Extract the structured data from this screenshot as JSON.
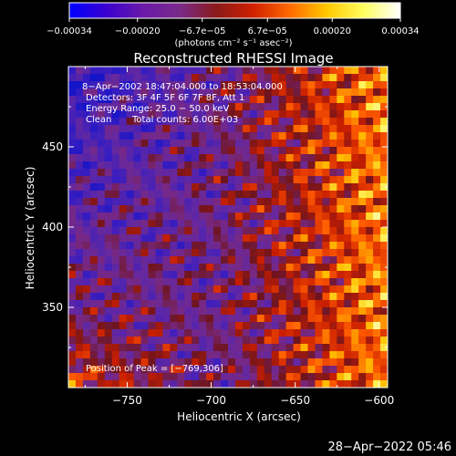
{
  "chart_data": {
    "type": "heatmap",
    "title": "Reconstructed RHESSI Image",
    "xlabel": "Heliocentric X (arcsec)",
    "ylabel": "Heliocentric Y (arcsec)",
    "xlim": [
      -785,
      -595
    ],
    "ylim": [
      300,
      500
    ],
    "x_ticks": [
      -750,
      -700,
      -650,
      -600
    ],
    "x_tick_labels": [
      "−750",
      "−700",
      "−650",
      "−600"
    ],
    "y_ticks": [
      350,
      400,
      450
    ],
    "y_tick_labels": [
      "350",
      "400",
      "450"
    ],
    "colorbar": {
      "range": [
        -0.00034,
        0.00034
      ],
      "ticks": [
        -0.00034,
        -0.0002,
        -6.7e-05,
        6.7e-05,
        0.0002,
        0.00034
      ],
      "tick_labels": [
        "−0.00034",
        "−0.00020",
        "−6.7e−05",
        "6.7e−05",
        "0.00020",
        "0.00034"
      ],
      "unit_label": "(photons cm⁻² s⁻¹ asec⁻²)",
      "colors": [
        "#0000ff",
        "#3a00d0",
        "#6a1aa8",
        "#7a2a8a",
        "#8a1a1a",
        "#d02000",
        "#ff6a00",
        "#ffc800",
        "#ffff60",
        "#ffffff"
      ]
    },
    "annotations": {
      "time_range": "8−Apr−2002 18:47:04.000 to 18:53:04.000",
      "detectors": "Detectors: 3F 4F 5F 6F 7F 8F, Att 1",
      "energy_range": "Energy Range: 25.0 − 50.0 keV",
      "clean_label": "Clean",
      "total_counts": "Total counts: 6.00E+03",
      "peak_position": "Position of Peak = [−769,306]"
    },
    "peak": [
      -769,
      306
    ],
    "footer_timestamp": "28−Apr−2022 05:46"
  }
}
